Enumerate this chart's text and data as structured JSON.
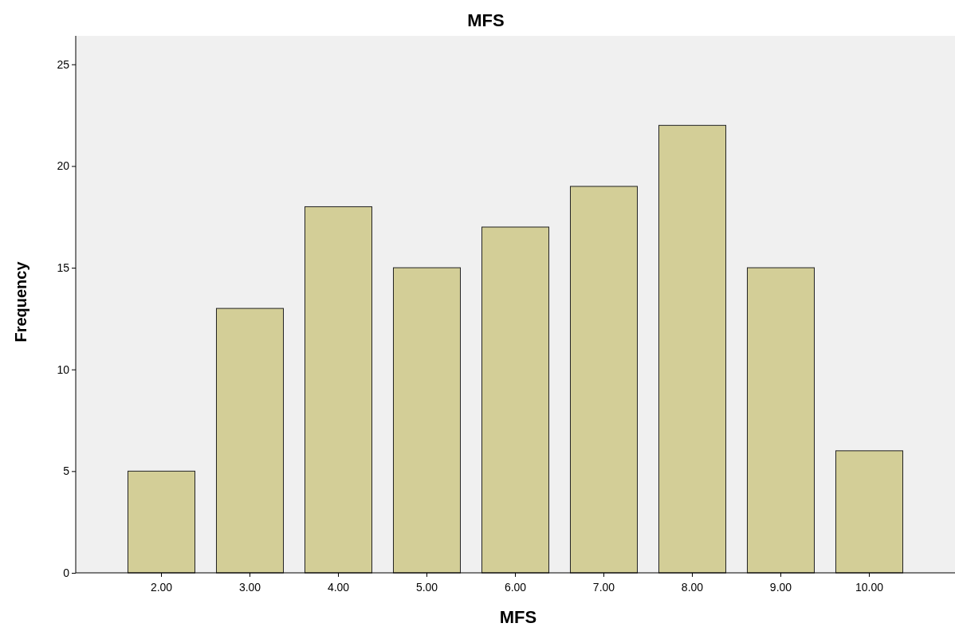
{
  "chart_data": {
    "type": "bar",
    "title": "MFS",
    "xlabel": "MFS",
    "ylabel": "Frequency",
    "categories": [
      "2.00",
      "3.00",
      "4.00",
      "5.00",
      "6.00",
      "7.00",
      "8.00",
      "9.00",
      "10.00"
    ],
    "values": [
      5,
      13,
      18,
      15,
      17,
      19,
      22,
      15,
      6
    ],
    "color": "#d3ce97",
    "ylim": [
      0,
      26.4
    ],
    "yticks": [
      0,
      5,
      10,
      15,
      20,
      25
    ],
    "grid": false
  }
}
